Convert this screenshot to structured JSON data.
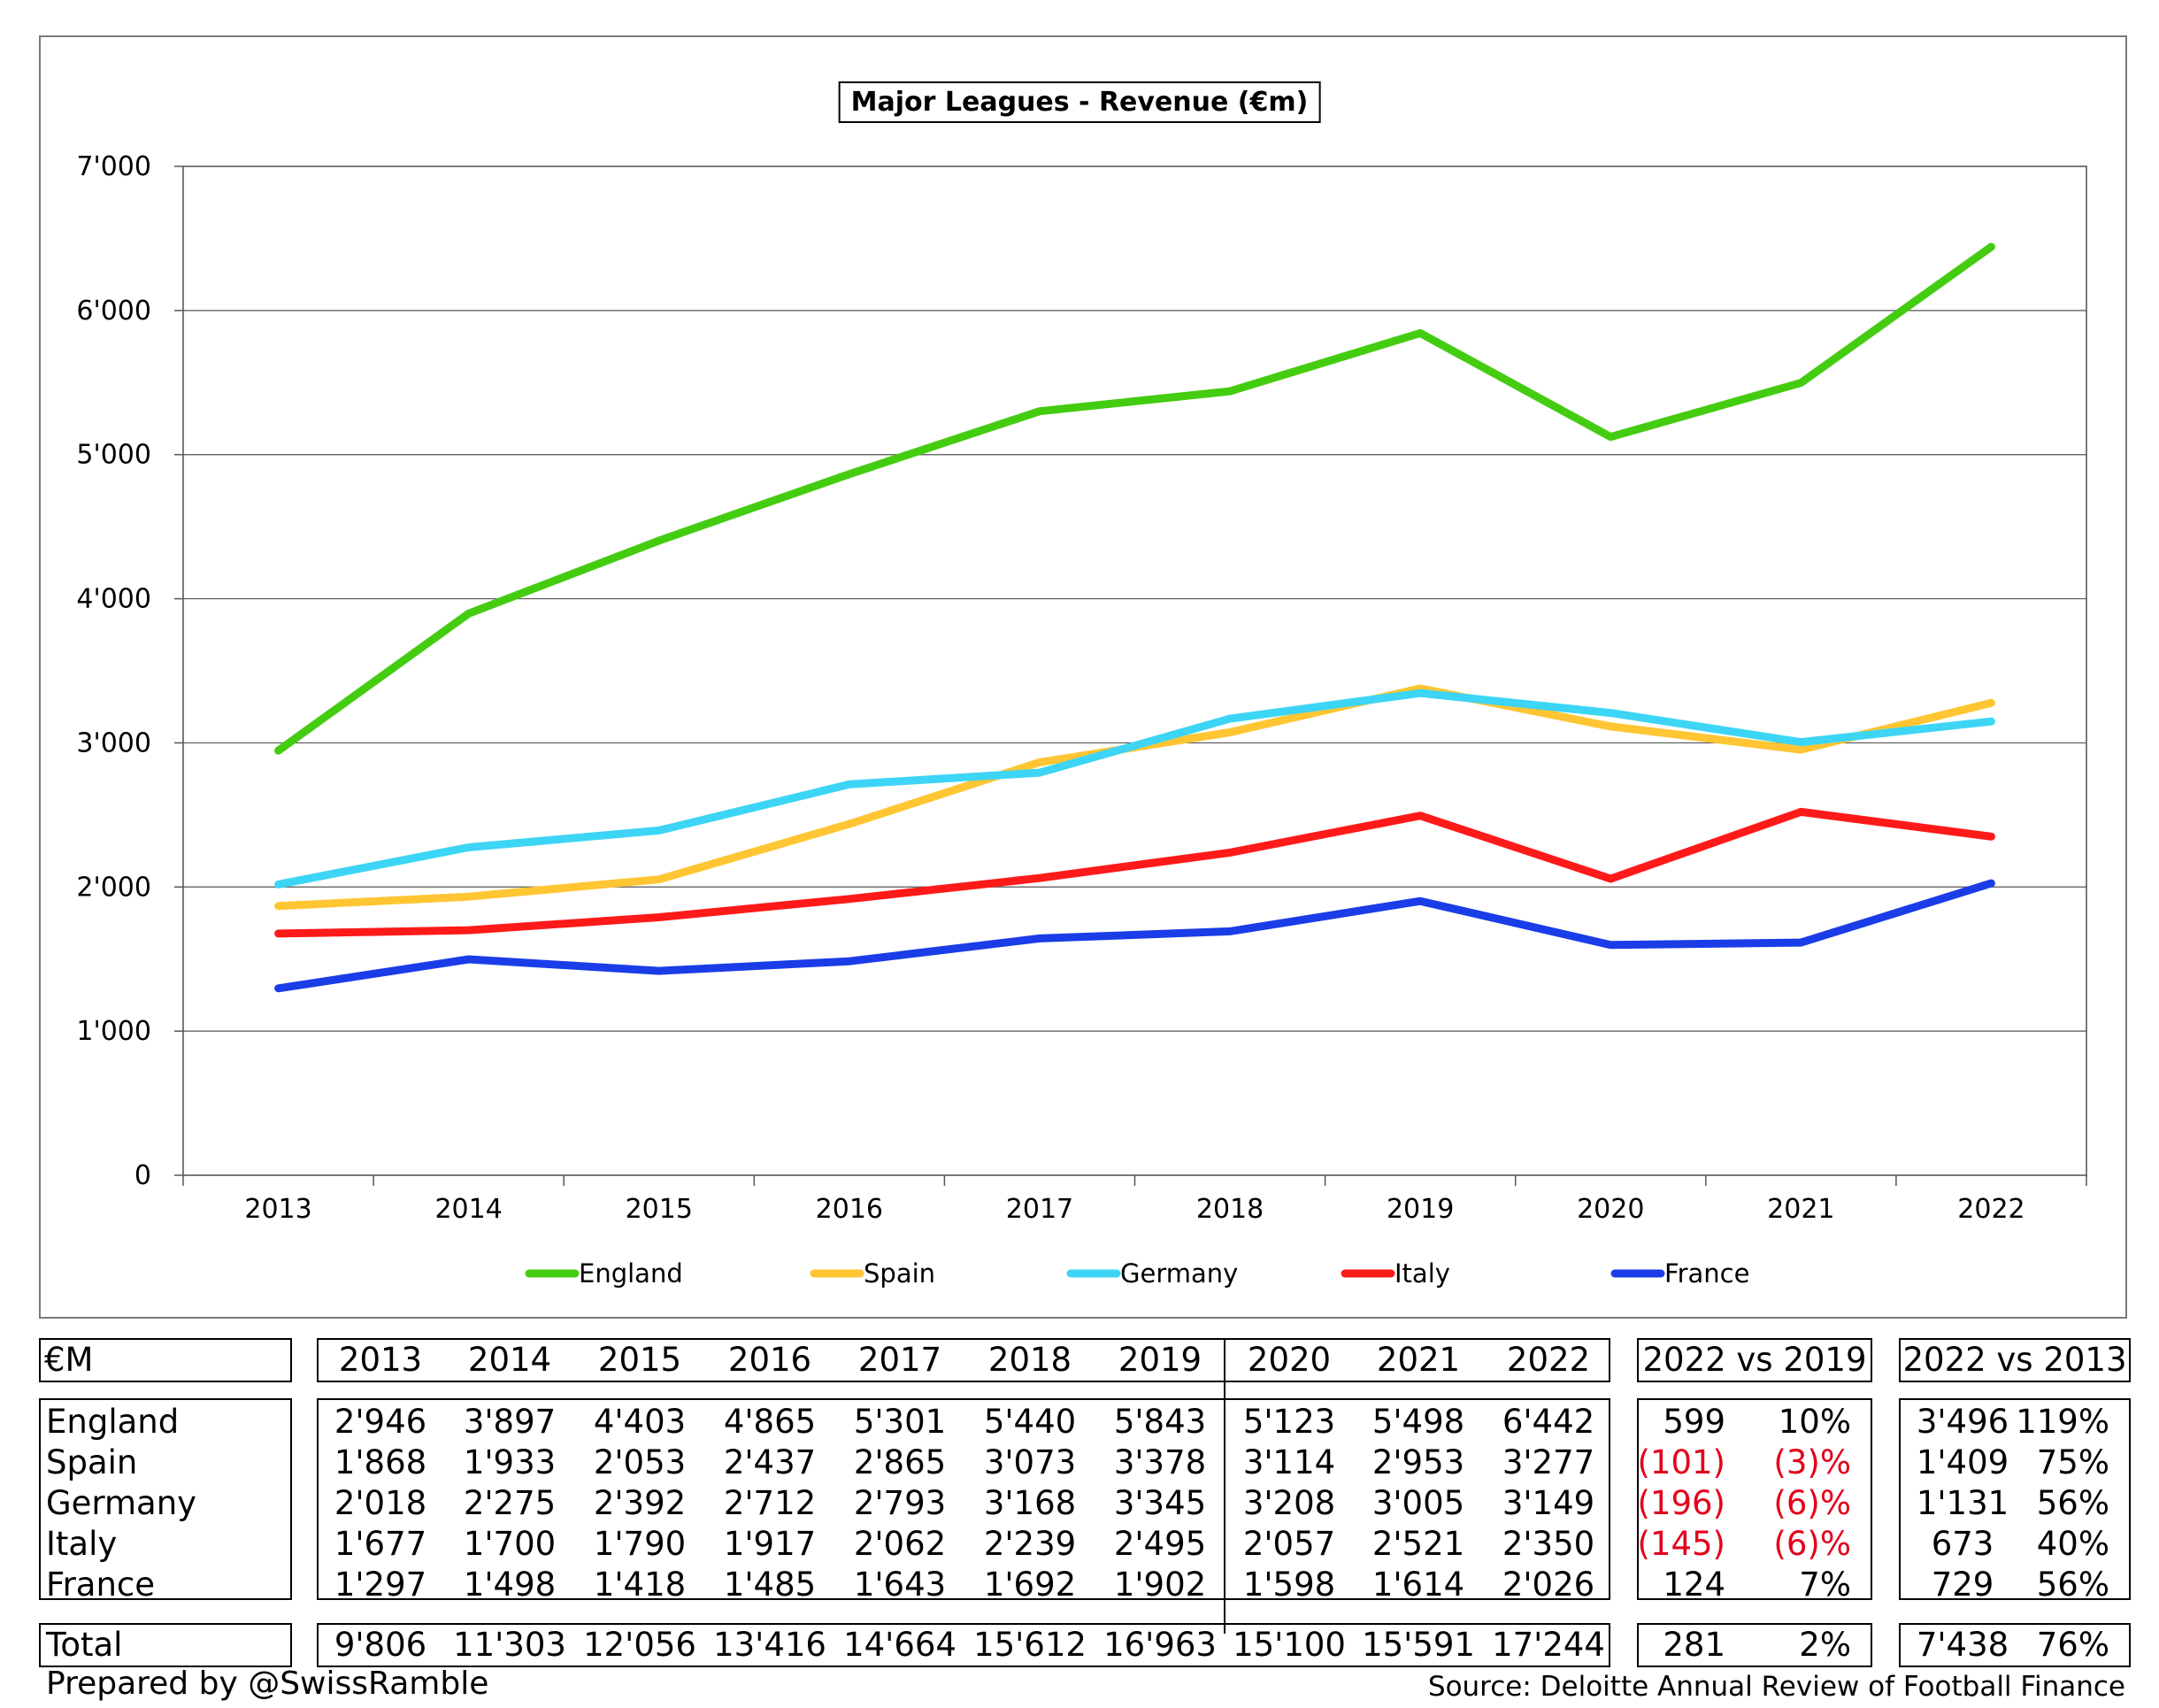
{
  "chart_data": {
    "type": "line",
    "title": "Major Leagues - Revenue (€m)",
    "categories": [
      "2013",
      "2014",
      "2015",
      "2016",
      "2017",
      "2018",
      "2019",
      "2020",
      "2021",
      "2022"
    ],
    "ylim": [
      0,
      7000
    ],
    "yticks": [
      "0",
      "1'000",
      "2'000",
      "3'000",
      "4'000",
      "5'000",
      "6'000",
      "7'000"
    ],
    "grid": true,
    "legend_position": "bottom",
    "series": [
      {
        "name": "England",
        "color": "#44cc11",
        "values": [
          2946,
          3897,
          4403,
          4865,
          5301,
          5440,
          5843,
          5123,
          5498,
          6442
        ]
      },
      {
        "name": "Spain",
        "color": "#ffc533",
        "values": [
          1868,
          1933,
          2053,
          2437,
          2865,
          3073,
          3378,
          3114,
          2953,
          3277
        ]
      },
      {
        "name": "Germany",
        "color": "#3dd5f5",
        "values": [
          2018,
          2275,
          2392,
          2712,
          2793,
          3168,
          3345,
          3208,
          3005,
          3149
        ]
      },
      {
        "name": "Italy",
        "color": "#ff1a1a",
        "values": [
          1677,
          1700,
          1790,
          1917,
          2062,
          2239,
          2495,
          2057,
          2521,
          2350
        ]
      },
      {
        "name": "France",
        "color": "#1a3de8",
        "values": [
          1297,
          1498,
          1418,
          1485,
          1643,
          1692,
          1902,
          1598,
          1614,
          2026
        ]
      }
    ]
  },
  "table": {
    "corner": "€M",
    "years": [
      "2013",
      "2014",
      "2015",
      "2016",
      "2017",
      "2018",
      "2019",
      "2020",
      "2021",
      "2022"
    ],
    "vs2019_header": "2022 vs 2019",
    "vs2013_header": "2022 vs 2013",
    "rows": [
      {
        "name": "England",
        "values": [
          "2'946",
          "3'897",
          "4'403",
          "4'865",
          "5'301",
          "5'440",
          "5'843",
          "5'123",
          "5'498",
          "6'442"
        ],
        "vs2019_abs": "599",
        "vs2019_pct": "10%",
        "vs2013_abs": "3'496",
        "vs2013_pct": "119%",
        "neg2019": false
      },
      {
        "name": "Spain",
        "values": [
          "1'868",
          "1'933",
          "2'053",
          "2'437",
          "2'865",
          "3'073",
          "3'378",
          "3'114",
          "2'953",
          "3'277"
        ],
        "vs2019_abs": "(101)",
        "vs2019_pct": "(3)%",
        "vs2013_abs": "1'409",
        "vs2013_pct": "75%",
        "neg2019": true
      },
      {
        "name": "Germany",
        "values": [
          "2'018",
          "2'275",
          "2'392",
          "2'712",
          "2'793",
          "3'168",
          "3'345",
          "3'208",
          "3'005",
          "3'149"
        ],
        "vs2019_abs": "(196)",
        "vs2019_pct": "(6)%",
        "vs2013_abs": "1'131",
        "vs2013_pct": "56%",
        "neg2019": true
      },
      {
        "name": "Italy",
        "values": [
          "1'677",
          "1'700",
          "1'790",
          "1'917",
          "2'062",
          "2'239",
          "2'495",
          "2'057",
          "2'521",
          "2'350"
        ],
        "vs2019_abs": "(145)",
        "vs2019_pct": "(6)%",
        "vs2013_abs": "673",
        "vs2013_pct": "40%",
        "neg2019": true
      },
      {
        "name": "France",
        "values": [
          "1'297",
          "1'498",
          "1'418",
          "1'485",
          "1'643",
          "1'692",
          "1'902",
          "1'598",
          "1'614",
          "2'026"
        ],
        "vs2019_abs": "124",
        "vs2019_pct": "7%",
        "vs2013_abs": "729",
        "vs2013_pct": "56%",
        "neg2019": false
      }
    ],
    "total": {
      "name": "Total",
      "values": [
        "9'806",
        "11'303",
        "12'056",
        "13'416",
        "14'664",
        "15'612",
        "16'963",
        "15'100",
        "15'591",
        "17'244"
      ],
      "vs2019_abs": "281",
      "vs2019_pct": "2%",
      "vs2013_abs": "7'438",
      "vs2013_pct": "76%"
    }
  },
  "footer": {
    "left": "Prepared by @SwissRamble",
    "right": "Source: Deloitte Annual Review of Football Finance"
  }
}
